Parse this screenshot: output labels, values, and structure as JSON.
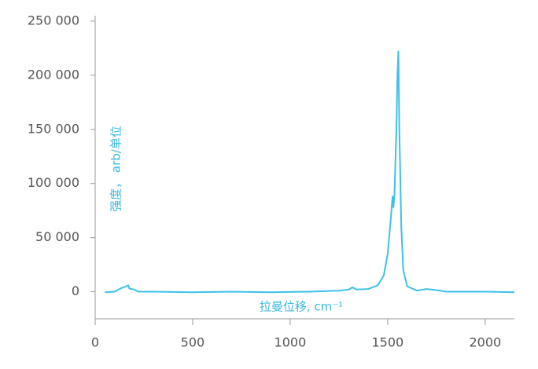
{
  "chart_data": {
    "type": "line",
    "xlabel": "拉曼位移, cm⁻¹",
    "ylabel": "强度， arb/单位",
    "color": "#3ec0ea",
    "x": [
      50,
      100,
      130,
      160,
      170,
      175,
      200,
      220,
      300,
      500,
      700,
      900,
      1100,
      1250,
      1300,
      1320,
      1340,
      1400,
      1450,
      1480,
      1500,
      1515,
      1525,
      1530,
      1535,
      1545,
      1550,
      1555,
      1560,
      1570,
      1580,
      1600,
      1650,
      1700,
      1750,
      1800,
      2000,
      2150
    ],
    "values": [
      -500,
      0,
      3000,
      5000,
      6000,
      3000,
      2000,
      0,
      0,
      -500,
      0,
      -500,
      0,
      1000,
      2000,
      4000,
      2000,
      2500,
      6000,
      15000,
      35000,
      65000,
      88000,
      78000,
      90000,
      150000,
      200000,
      222000,
      150000,
      60000,
      20000,
      5000,
      1000,
      2500,
      1500,
      0,
      0,
      -500
    ],
    "xlim": [
      0,
      2150
    ],
    "ylim": [
      -25000,
      255000
    ],
    "xticks": [
      0,
      500,
      1000,
      1500,
      2000
    ],
    "yticks": [
      {
        "value": 0,
        "label": "0"
      },
      {
        "value": 50000,
        "label": "50 000"
      },
      {
        "value": 100000,
        "label": "100 000"
      },
      {
        "value": 150000,
        "label": "150 000"
      },
      {
        "value": 200000,
        "label": "200 000"
      },
      {
        "value": 250000,
        "label": "250 000"
      }
    ]
  }
}
